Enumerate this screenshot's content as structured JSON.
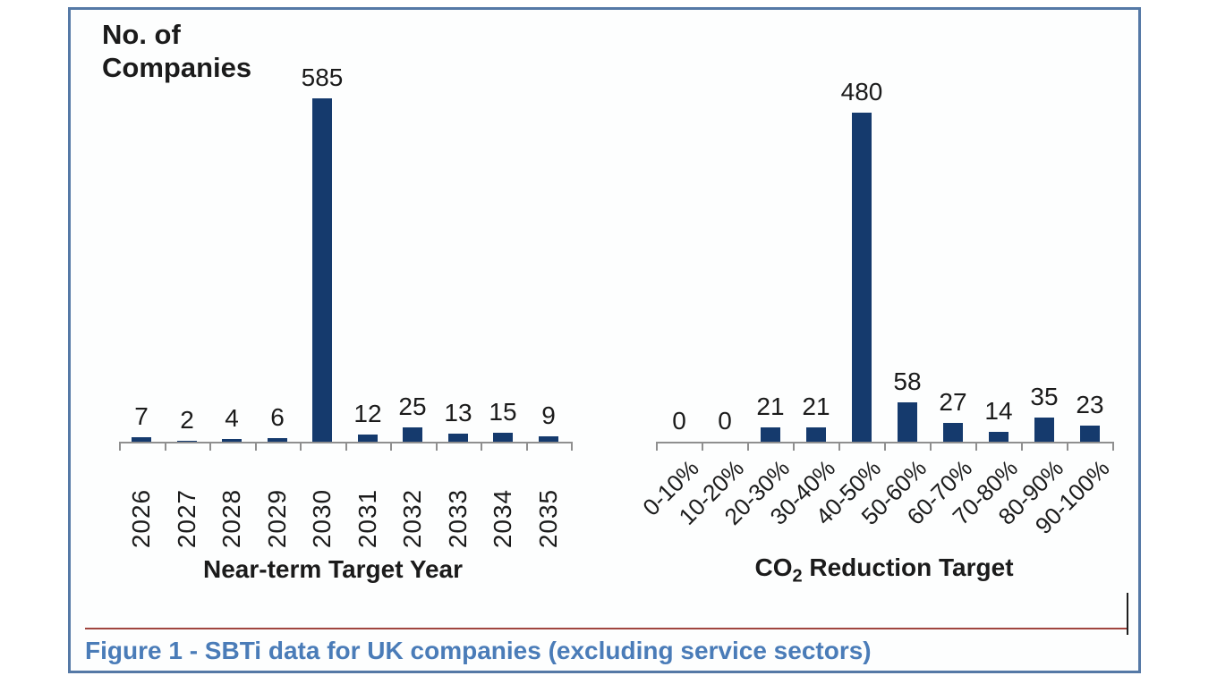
{
  "page": {
    "y_axis_label_line1": "No. of",
    "y_axis_label_line2": "Companies",
    "caption": "Figure 1 - SBTi data for UK companies (excluding service sectors)"
  },
  "colors": {
    "bar": "#153a6d",
    "axis": "#8f8f8f",
    "frame_border": "#5579a6",
    "caption": "#4a7cb8",
    "red_line": "#a0453f"
  },
  "chart_data": [
    {
      "type": "bar",
      "name": "near-term-target-year",
      "title": "",
      "categories": [
        "2026",
        "2027",
        "2028",
        "2029",
        "2030",
        "2031",
        "2032",
        "2033",
        "2034",
        "2035"
      ],
      "values": [
        7,
        2,
        4,
        6,
        585,
        12,
        25,
        13,
        15,
        9
      ],
      "xlabel": "Near-term Target Year",
      "ylabel": "No. of Companies",
      "ylim": [
        0,
        585
      ],
      "data_labels": true,
      "tick_label_rotation_deg": 90,
      "legend": "none",
      "grid": false,
      "bar_color": "#153a6d"
    },
    {
      "type": "bar",
      "name": "co2-reduction-target",
      "title": "",
      "categories": [
        "0-10%",
        "10-20%",
        "20-30%",
        "30-40%",
        "40-50%",
        "50-60%",
        "60-70%",
        "70-80%",
        "80-90%",
        "90-100%"
      ],
      "values": [
        0,
        0,
        21,
        21,
        480,
        58,
        27,
        14,
        35,
        23
      ],
      "xlabel": "CO2 Reduction Target",
      "xlabel_parts": {
        "prefix": "CO",
        "subscript": "2",
        "suffix": " Reduction Target"
      },
      "ylabel": "No. of Companies",
      "ylim": [
        0,
        480
      ],
      "data_labels": true,
      "tick_label_rotation_deg": 45,
      "legend": "none",
      "grid": false,
      "bar_color": "#153a6d"
    }
  ]
}
